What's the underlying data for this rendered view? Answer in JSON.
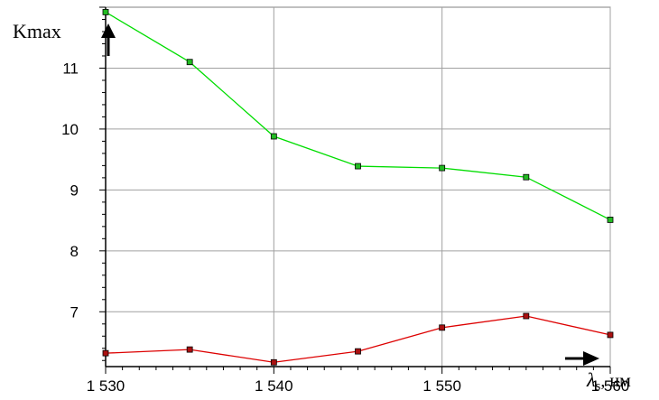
{
  "chart_data": {
    "type": "line",
    "ylabel": "Kmax",
    "xlabel_symbol": "λ",
    "xlabel_sub": "s",
    "xlabel_unit": ", нм",
    "xlim": [
      1530,
      1560
    ],
    "ylim": [
      6.1,
      12
    ],
    "xticks": [
      1530,
      1540,
      1550,
      1560
    ],
    "xtick_labels": [
      "1 530",
      "1 540",
      "1 550",
      "1 560"
    ],
    "yticks": [
      7,
      8,
      9,
      10,
      11
    ],
    "ytick_labels": [
      "7",
      "8",
      "9",
      "10",
      "11"
    ],
    "grid": true,
    "series": [
      {
        "color": "#00dd00",
        "marker_fill": "#22bb22",
        "x": [
          1530,
          1535,
          1540,
          1545,
          1550,
          1555,
          1560
        ],
        "y": [
          11.92,
          11.1,
          9.88,
          9.39,
          9.36,
          9.21,
          8.51
        ]
      },
      {
        "color": "#dd0000",
        "marker_fill": "#aa1111",
        "x": [
          1530,
          1535,
          1540,
          1545,
          1550,
          1555,
          1560
        ],
        "y": [
          6.32,
          6.38,
          6.17,
          6.35,
          6.74,
          6.93,
          6.62
        ]
      }
    ]
  }
}
